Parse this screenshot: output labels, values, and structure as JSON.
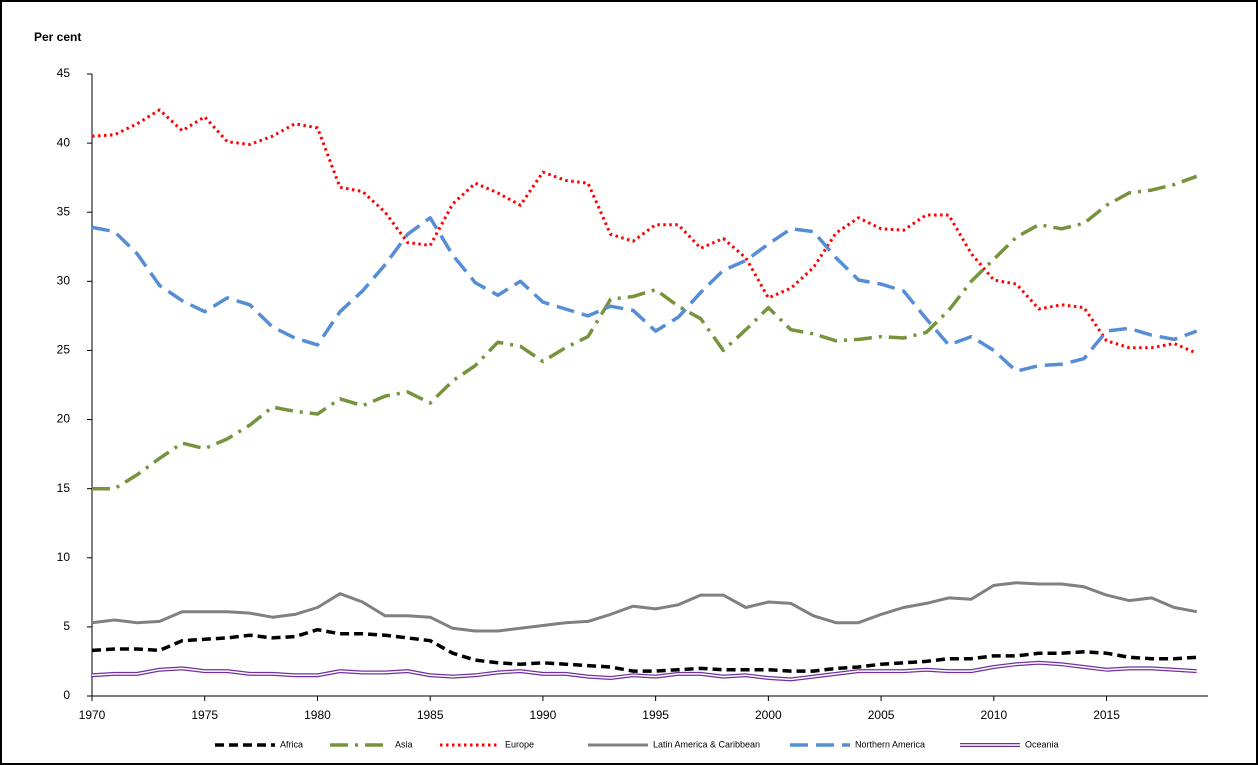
{
  "chart_data": {
    "type": "line",
    "y_label": "Per cent",
    "x": [
      1970,
      1971,
      1972,
      1973,
      1974,
      1975,
      1976,
      1977,
      1978,
      1979,
      1980,
      1981,
      1982,
      1983,
      1984,
      1985,
      1986,
      1987,
      1988,
      1989,
      1990,
      1991,
      1992,
      1993,
      1994,
      1995,
      1996,
      1997,
      1998,
      1999,
      2000,
      2001,
      2002,
      2003,
      2004,
      2005,
      2006,
      2007,
      2008,
      2009,
      2010,
      2011,
      2012,
      2013,
      2014,
      2015,
      2016,
      2017,
      2018,
      2019
    ],
    "xlim": [
      1970,
      2019.5
    ],
    "xticks": [
      1970,
      1975,
      1980,
      1985,
      1990,
      1995,
      2000,
      2005,
      2010,
      2015
    ],
    "ylim": [
      0,
      45
    ],
    "yticks": [
      0,
      5,
      10,
      15,
      20,
      25,
      30,
      35,
      40,
      45
    ],
    "grid": false,
    "legend": "bottom",
    "series": [
      {
        "name": "Africa",
        "color": "#000000",
        "style": "dashed",
        "values": [
          3.3,
          3.4,
          3.4,
          3.3,
          4.0,
          4.1,
          4.2,
          4.4,
          4.2,
          4.3,
          4.8,
          4.5,
          4.5,
          4.4,
          4.2,
          4.0,
          3.1,
          2.6,
          2.4,
          2.3,
          2.4,
          2.3,
          2.2,
          2.1,
          1.8,
          1.8,
          1.9,
          2.0,
          1.9,
          1.9,
          1.9,
          1.8,
          1.8,
          2.0,
          2.1,
          2.3,
          2.4,
          2.5,
          2.7,
          2.7,
          2.9,
          2.9,
          3.1,
          3.1,
          3.2,
          3.1,
          2.8,
          2.7,
          2.7,
          2.8
        ]
      },
      {
        "name": "Asia",
        "color": "#77933c",
        "style": "dashdot",
        "values": [
          15.0,
          15.0,
          16.0,
          17.2,
          18.3,
          17.9,
          18.6,
          19.6,
          20.9,
          20.6,
          20.4,
          21.5,
          21.0,
          21.7,
          22.0,
          21.2,
          22.8,
          23.9,
          25.6,
          25.3,
          24.2,
          25.2,
          26.0,
          28.7,
          28.9,
          29.4,
          28.2,
          27.3,
          25.0,
          26.5,
          28.1,
          26.5,
          26.2,
          25.7,
          25.8,
          26.0,
          25.9,
          26.3,
          27.9,
          30.0,
          31.6,
          33.2,
          34.1,
          33.8,
          34.2,
          35.5,
          36.4,
          36.6,
          37.0,
          37.6
        ]
      },
      {
        "name": "Europe",
        "color": "#ff0000",
        "style": "dotted",
        "values": [
          40.5,
          40.6,
          41.4,
          42.4,
          40.9,
          41.9,
          40.1,
          39.9,
          40.5,
          41.4,
          41.1,
          36.8,
          36.5,
          35.0,
          32.8,
          32.6,
          35.6,
          37.1,
          36.4,
          35.5,
          37.9,
          37.3,
          37.1,
          33.4,
          32.9,
          34.1,
          34.1,
          32.4,
          33.1,
          31.7,
          28.8,
          29.5,
          31.0,
          33.5,
          34.6,
          33.8,
          33.7,
          34.8,
          34.8,
          32.0,
          30.1,
          29.8,
          28.0,
          28.3,
          28.1,
          25.7,
          25.2,
          25.2,
          25.5,
          24.8
        ]
      },
      {
        "name": "Latin America & Caribbean",
        "color": "#808080",
        "style": "solid",
        "values": [
          5.3,
          5.5,
          5.3,
          5.4,
          6.1,
          6.1,
          6.1,
          6.0,
          5.7,
          5.9,
          6.4,
          7.4,
          6.8,
          5.8,
          5.8,
          5.7,
          4.9,
          4.7,
          4.7,
          4.9,
          5.1,
          5.3,
          5.4,
          5.9,
          6.5,
          6.3,
          6.6,
          7.3,
          7.3,
          6.4,
          6.8,
          6.7,
          5.8,
          5.3,
          5.3,
          5.9,
          6.4,
          6.7,
          7.1,
          7.0,
          8.0,
          8.2,
          8.1,
          8.1,
          7.9,
          7.3,
          6.9,
          7.1,
          6.4,
          6.1
        ]
      },
      {
        "name": "Northern America",
        "color": "#558ed5",
        "style": "longdash",
        "values": [
          33.9,
          33.6,
          32.0,
          29.7,
          28.6,
          27.8,
          28.8,
          28.3,
          26.7,
          25.9,
          25.4,
          27.8,
          29.3,
          31.2,
          33.4,
          34.6,
          31.9,
          29.9,
          29.0,
          30.0,
          28.5,
          28.0,
          27.5,
          28.2,
          27.9,
          26.4,
          27.4,
          29.2,
          30.8,
          31.5,
          32.7,
          33.8,
          33.6,
          31.7,
          30.1,
          29.8,
          29.3,
          27.3,
          25.4,
          26.0,
          25.0,
          23.5,
          23.9,
          24.0,
          24.4,
          26.4,
          26.6,
          26.1,
          25.8,
          26.4
        ]
      },
      {
        "name": "Oceania",
        "color": "#7030a0",
        "style": "double",
        "values": [
          1.5,
          1.6,
          1.6,
          1.9,
          2.0,
          1.8,
          1.8,
          1.6,
          1.6,
          1.5,
          1.5,
          1.8,
          1.7,
          1.7,
          1.8,
          1.5,
          1.4,
          1.5,
          1.7,
          1.8,
          1.6,
          1.6,
          1.4,
          1.3,
          1.5,
          1.4,
          1.6,
          1.6,
          1.4,
          1.5,
          1.3,
          1.2,
          1.4,
          1.6,
          1.8,
          1.8,
          1.8,
          1.9,
          1.8,
          1.8,
          2.1,
          2.3,
          2.4,
          2.3,
          2.1,
          1.9,
          2.0,
          2.0,
          1.9,
          1.8
        ]
      }
    ]
  }
}
